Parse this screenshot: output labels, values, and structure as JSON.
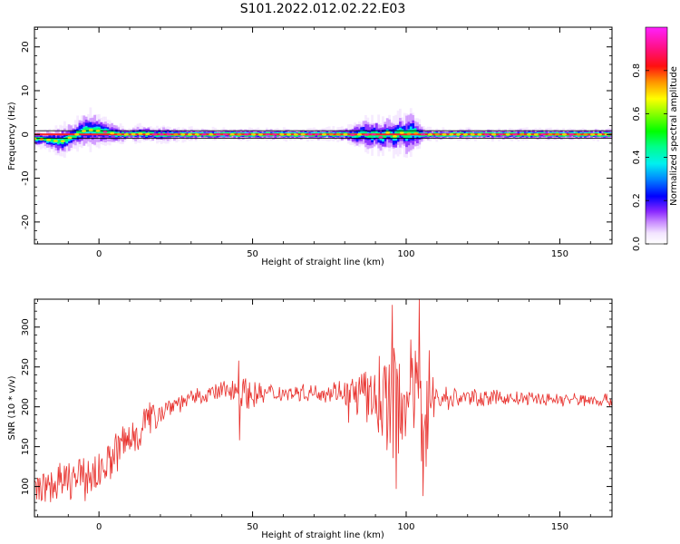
{
  "figure": {
    "title": "S101.2022.012.02.22.E03"
  },
  "chart_data": [
    {
      "type": "heatmap",
      "xlabel": "Height of straight line (km)",
      "ylabel": "Frequency (Hz)",
      "xlim": [
        -21,
        167
      ],
      "ylim": [
        -25,
        24.5
      ],
      "xticks": [
        0,
        50,
        100,
        150
      ],
      "yticks": [
        -20,
        -10,
        0,
        10,
        20
      ],
      "ridge": {
        "x": [
          -21,
          -17,
          -14,
          -12,
          -10,
          -8,
          -6,
          -4,
          -2,
          0,
          2,
          4,
          6,
          8,
          10,
          14,
          18,
          25,
          35,
          50,
          70,
          80,
          84,
          86,
          88,
          90,
          92,
          94,
          96,
          98,
          100,
          102,
          104,
          106,
          110,
          130,
          150,
          167
        ],
        "y": [
          -1.0,
          -1.2,
          -1.5,
          -1.6,
          -0.9,
          -0.3,
          0.5,
          1.0,
          1.0,
          0.8,
          0.6,
          0.3,
          0.1,
          0.0,
          0.0,
          0.2,
          0.0,
          0.0,
          0.0,
          0.0,
          0.0,
          0.0,
          -0.2,
          0.3,
          -0.4,
          0.2,
          -0.8,
          0.4,
          -0.6,
          0.6,
          -0.2,
          0.6,
          0.0,
          0.0,
          0.0,
          0.0,
          0.0,
          0.0
        ],
        "spread": [
          0.7,
          0.9,
          1.2,
          1.4,
          1.4,
          1.3,
          1.5,
          1.7,
          1.7,
          1.6,
          1.3,
          1.0,
          0.9,
          0.7,
          0.6,
          0.8,
          0.7,
          0.6,
          0.5,
          0.5,
          0.5,
          0.6,
          1.2,
          1.4,
          1.6,
          1.5,
          1.7,
          1.6,
          1.8,
          1.9,
          2.0,
          2.2,
          1.4,
          0.6,
          0.5,
          0.5,
          0.5,
          0.5
        ]
      },
      "colorbar": {
        "label": "Normalized spectral amplitude",
        "range": [
          0,
          1
        ],
        "ticks": [
          0.0,
          0.2,
          0.4,
          0.6,
          0.8
        ],
        "colormap": "gist_ncar-like (white, violet, blue, cyan, green, yellow, red, magenta)"
      }
    },
    {
      "type": "line",
      "xlabel": "Height of straight line (km)",
      "ylabel": "SNR (10 * v/v)",
      "xlim": [
        -21,
        167
      ],
      "ylim": [
        62,
        335
      ],
      "xticks": [
        0,
        50,
        100,
        150
      ],
      "yticks": [
        100,
        150,
        200,
        250,
        300
      ],
      "series": [
        {
          "color": "#e8302c",
          "envelope": {
            "x": [
              -21,
              -18,
              -15,
              -12,
              -8,
              -5,
              -2,
              0,
              3,
              6,
              10,
              15,
              20,
              25,
              30,
              35,
              40,
              45,
              50,
              60,
              70,
              80,
              85,
              90,
              95,
              100,
              103,
              106,
              110,
              120,
              140,
              167
            ],
            "mean": [
              95,
              100,
              100,
              105,
              110,
              110,
              115,
              120,
              130,
              145,
              160,
              180,
              195,
              205,
              210,
              215,
              220,
              222,
              215,
              218,
              218,
              220,
              215,
              210,
              210,
              210,
              210,
              215,
              210,
              212,
              210,
              208
            ],
            "amp": [
              25,
              22,
              25,
              28,
              30,
              30,
              32,
              30,
              30,
              35,
              40,
              30,
              18,
              15,
              12,
              12,
              15,
              25,
              20,
              12,
              12,
              18,
              35,
              50,
              80,
              70,
              90,
              110,
              20,
              12,
              10,
              10
            ]
          },
          "peaks": [
            {
              "x": 95.5,
              "y": 328
            },
            {
              "x": 96.7,
              "y": 97
            },
            {
              "x": 104.3,
              "y": 336
            },
            {
              "x": 105.5,
              "y": 88
            },
            {
              "x": 45.5,
              "y": 258
            },
            {
              "x": 45.8,
              "y": 158
            },
            {
              "x": 81.3,
              "y": 180
            }
          ]
        }
      ]
    }
  ]
}
